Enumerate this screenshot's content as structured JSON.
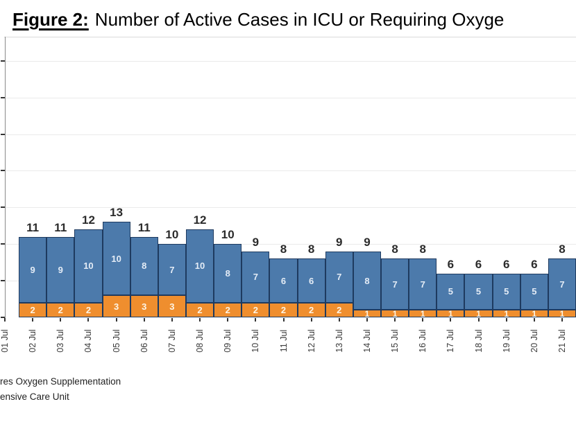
{
  "title": {
    "figure_label": "Figure 2:",
    "text": "Number of Active Cases in ICU or Requiring Oxyge"
  },
  "footnotes": {
    "line1": "res Oxygen Supplementation",
    "line2": "ensive Care Unit"
  },
  "colors": {
    "bar_orange": "#EF8E2E",
    "bar_blue": "#4C7AAB",
    "bar_border": "#1E3A5F",
    "grid": "#EAEAEA",
    "axis": "#8A8A8A",
    "tick": "#333333",
    "total_label": "#2B2B2B",
    "date_label": "#3B3B3B",
    "footnote_text": "#222222",
    "title_separator": "#D9D9D9",
    "label_on_orange": "#FDF5E6",
    "label_on_blue": "#E4ECF6"
  },
  "chart_data": {
    "type": "bar",
    "stacked": true,
    "title": "Figure 2: Number of Active Cases in ICU or Requiring Oxyge",
    "xlabel": "",
    "ylabel": "",
    "categories": [
      "01 Jul",
      "02 Jul",
      "03 Jul",
      "04 Jul",
      "05 Jul",
      "06 Jul",
      "07 Jul",
      "08 Jul",
      "09 Jul",
      "10 Jul",
      "11 Jul",
      "12 Jul",
      "13 Jul",
      "14 Jul",
      "15 Jul",
      "16 Jul",
      "17 Jul",
      "18 Jul",
      "19 Jul",
      "20 Jul",
      "21 Jul"
    ],
    "series": [
      {
        "name": "res Oxygen Supplementation",
        "stack_position": "bottom",
        "color": "#EF8E2E",
        "label_color": "#FDF5E6",
        "values": [
          null,
          2,
          2,
          2,
          3,
          3,
          3,
          2,
          2,
          2,
          2,
          2,
          2,
          1,
          1,
          1,
          1,
          1,
          1,
          1,
          1
        ]
      },
      {
        "name": "ensive Care Unit",
        "stack_position": "top",
        "color": "#4C7AAB",
        "label_color": "#E4ECF6",
        "values": [
          null,
          9,
          9,
          10,
          10,
          8,
          7,
          10,
          8,
          7,
          6,
          6,
          7,
          8,
          7,
          7,
          5,
          5,
          5,
          5,
          7
        ]
      }
    ],
    "totals": [
      null,
      11,
      11,
      12,
      13,
      11,
      10,
      12,
      10,
      9,
      8,
      8,
      9,
      9,
      8,
      8,
      6,
      6,
      6,
      6,
      8
    ],
    "ylim": [
      0,
      38
    ],
    "grid_step": 5,
    "grid": true,
    "y_tick_labels_visible": false,
    "legend_position": "bottom-left (cropped off canvas)",
    "bar_total_labels_shown": true,
    "segment_value_labels_shown": true
  }
}
